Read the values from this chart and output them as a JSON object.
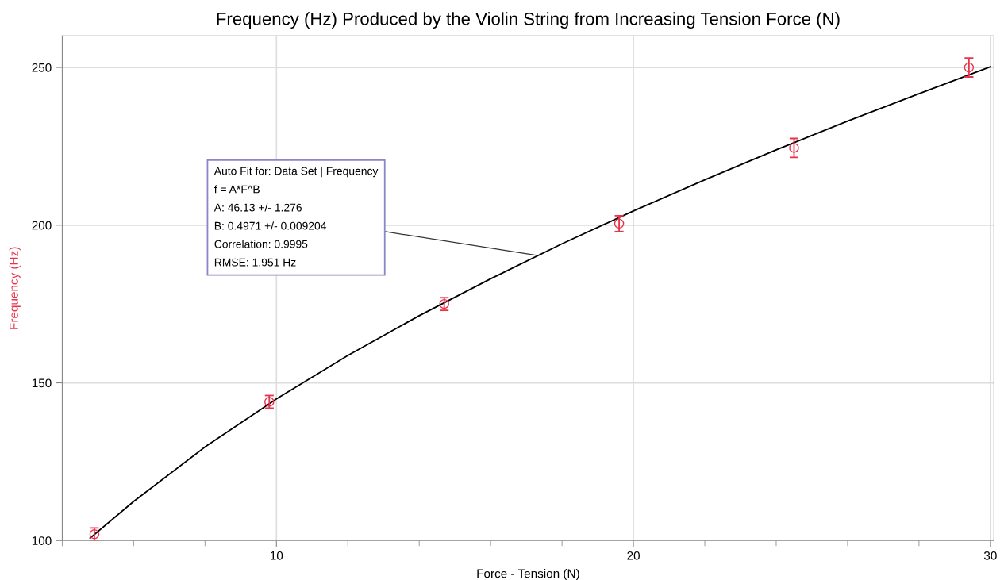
{
  "chart_data": {
    "type": "scatter",
    "title": "Frequency (Hz) Produced by the Violin String from Increasing Tension Force (N)",
    "xlabel": "Force - Tension (N)",
    "ylabel": "Frequency (Hz)",
    "xlim": [
      4,
      30.1
    ],
    "ylim": [
      100,
      260
    ],
    "xticks": [
      {
        "value": 4,
        "label": null
      },
      {
        "value": 6,
        "label": null
      },
      {
        "value": 8,
        "label": null
      },
      10,
      {
        "value": 12,
        "label": null
      },
      {
        "value": 14,
        "label": null
      },
      {
        "value": 16,
        "label": null
      },
      {
        "value": 18,
        "label": null
      },
      20,
      {
        "value": 22,
        "label": null
      },
      {
        "value": 24,
        "label": null
      },
      {
        "value": 26,
        "label": null
      },
      {
        "value": 28,
        "label": null
      },
      30
    ],
    "yticks": [
      100,
      150,
      200,
      250
    ],
    "grid": true,
    "marker": "circle",
    "series": [
      {
        "color": "#e8334a",
        "x": [
          4.9,
          9.8,
          14.7,
          19.6,
          24.5,
          29.4
        ],
        "values": [
          102,
          144,
          175,
          200.5,
          224.5,
          250
        ],
        "errors": [
          2,
          2,
          2,
          2.5,
          3,
          3
        ]
      },
      {
        "type": "line",
        "color": "#000000",
        "marker": "none",
        "x": [
          4.78,
          6,
          8,
          10,
          12,
          14,
          16,
          18,
          20,
          22,
          24,
          26,
          28,
          30
        ],
        "values": [
          100.8,
          112.4,
          129.7,
          144.9,
          158.7,
          171.3,
          183.0,
          194.1,
          204.5,
          214.4,
          223.9,
          233.0,
          241.7,
          250.2
        ]
      }
    ],
    "annotations": [
      {
        "text": "Auto Fit for: Data Set | Frequency\nf = A*F^B\nA: 46.13 +/- 1.276\nB: 0.4971 +/- 0.009204\nCorrelation: 0.9995\nRMSE: 1.951 Hz",
        "x": 17.3,
        "y": 190.4
      }
    ]
  }
}
